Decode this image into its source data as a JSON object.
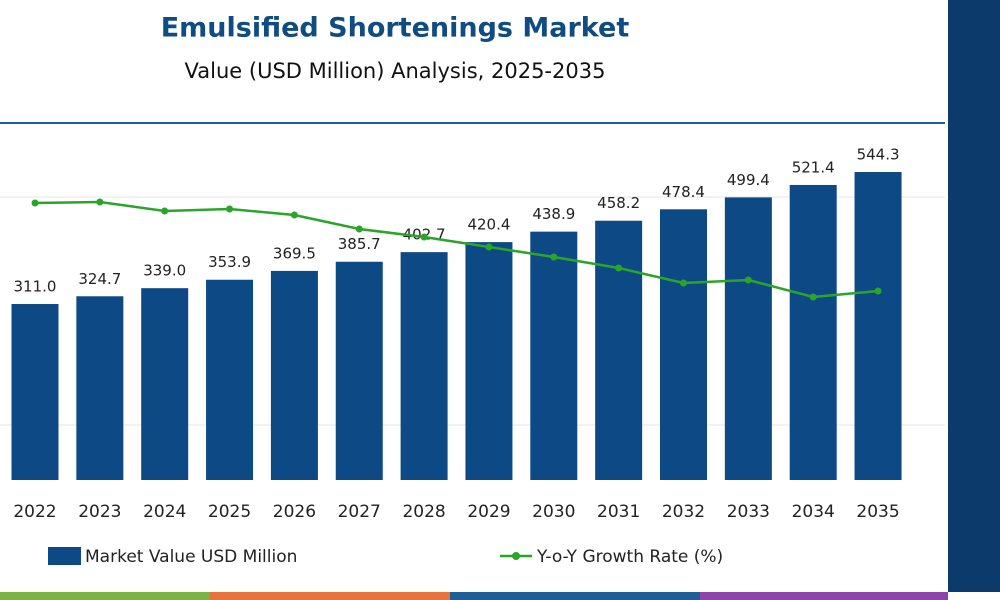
{
  "chart_data": {
    "type": "combo",
    "title": "Emulsified Shortenings Market",
    "subtitle": "Value (USD Million) Analysis, 2025-2035",
    "categories": [
      "2022",
      "2023",
      "2024",
      "2025",
      "2026",
      "2027",
      "2028",
      "2029",
      "2030",
      "2031",
      "2032",
      "2033",
      "2034",
      "2035"
    ],
    "series": [
      {
        "name": "Market Value USD Million",
        "type": "bar",
        "color": "#0d4a85",
        "values": [
          311.0,
          324.7,
          339.0,
          353.9,
          369.5,
          385.7,
          402.7,
          420.4,
          438.9,
          458.2,
          478.4,
          499.4,
          521.4,
          544.3
        ],
        "value_labels": [
          "311.0",
          "324.7",
          "339.0",
          "353.9",
          "369.5",
          "385.7",
          "402.7",
          "420.4",
          "438.9",
          "458.2",
          "478.4",
          "499.4",
          "521.4",
          "544.3"
        ]
      },
      {
        "name": "Y-o-Y Growth Rate (%)",
        "type": "line",
        "color": "#2aa52a",
        "axis": "y2",
        "values": [
          4.6,
          4.61,
          4.52,
          4.54,
          4.48,
          4.34,
          4.26,
          4.16,
          4.06,
          3.95,
          3.8,
          3.83,
          3.66,
          3.72
        ]
      }
    ]
  }
}
